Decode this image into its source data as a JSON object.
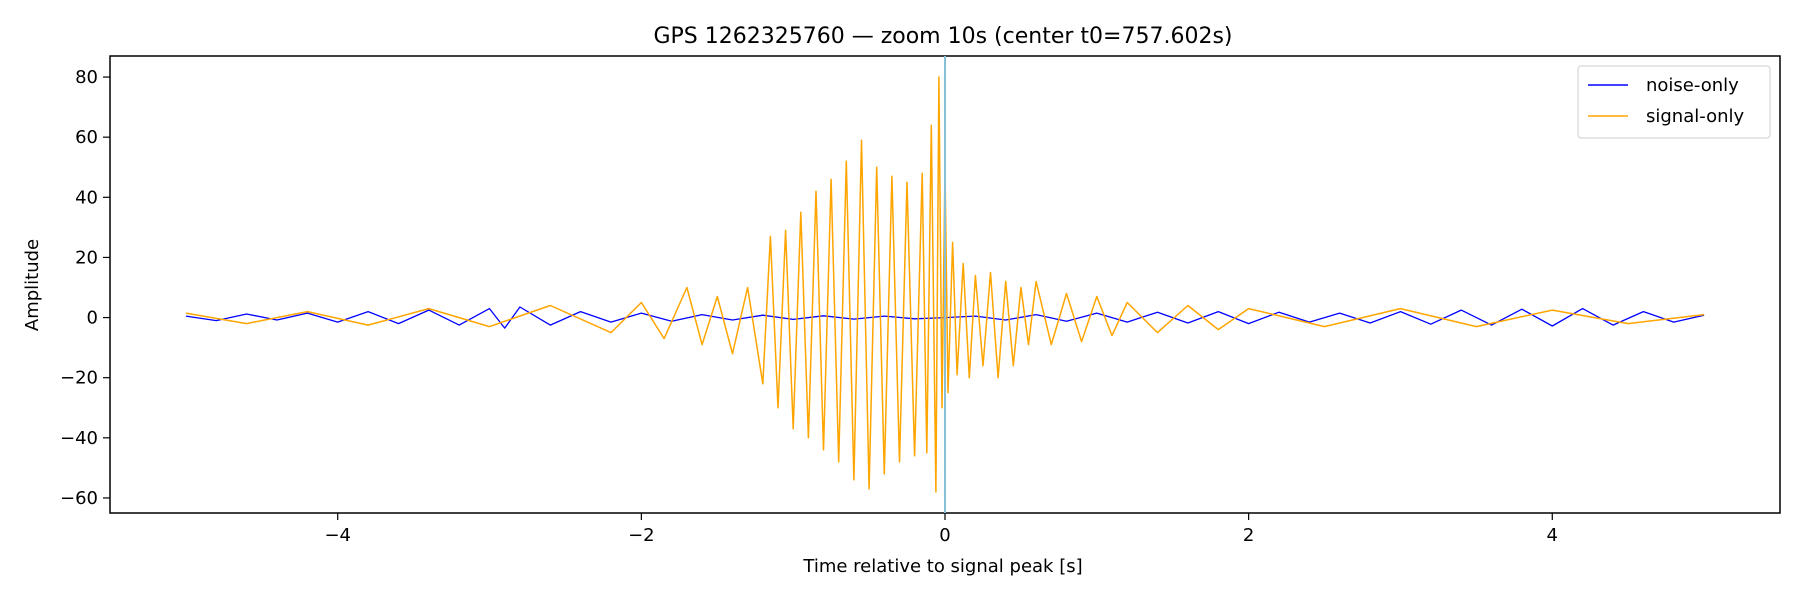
{
  "chart_data": {
    "type": "line",
    "title": "GPS 1262325760 — zoom 10s (center t0=757.602s)",
    "xlabel": "Time relative to signal peak [s]",
    "ylabel": "Amplitude",
    "xlim": [
      -5.5,
      5.5
    ],
    "ylim": [
      -65,
      87
    ],
    "xticks": [
      -4,
      -2,
      0,
      2,
      4
    ],
    "xtick_labels": [
      "−4",
      "−2",
      "0",
      "2",
      "4"
    ],
    "yticks": [
      -60,
      -40,
      -20,
      0,
      20,
      40,
      60,
      80
    ],
    "ytick_labels": [
      "−60",
      "−40",
      "−20",
      "0",
      "20",
      "40",
      "60",
      "80"
    ],
    "grid": false,
    "legend_position": "top-right",
    "vline": {
      "x": 0,
      "color": "#87bfd6"
    },
    "series": [
      {
        "name": "noise-only",
        "color": "#0000ff",
        "x": [
          -5.0,
          -4.8,
          -4.6,
          -4.4,
          -4.2,
          -4.0,
          -3.8,
          -3.6,
          -3.4,
          -3.2,
          -3.0,
          -2.9,
          -2.8,
          -2.6,
          -2.4,
          -2.2,
          -2.0,
          -1.8,
          -1.6,
          -1.4,
          -1.2,
          -1.0,
          -0.8,
          -0.6,
          -0.4,
          -0.2,
          0.0,
          0.2,
          0.4,
          0.6,
          0.8,
          1.0,
          1.2,
          1.4,
          1.6,
          1.8,
          2.0,
          2.2,
          2.4,
          2.6,
          2.8,
          3.0,
          3.2,
          3.4,
          3.6,
          3.8,
          4.0,
          4.2,
          4.4,
          4.6,
          4.8,
          5.0
        ],
        "y": [
          0.5,
          -1.0,
          1.2,
          -0.8,
          1.5,
          -1.5,
          2.0,
          -2.0,
          2.5,
          -2.5,
          3.0,
          -3.5,
          3.5,
          -2.5,
          2.0,
          -1.5,
          1.5,
          -1.2,
          1.0,
          -0.8,
          0.8,
          -0.6,
          0.6,
          -0.5,
          0.5,
          -0.4,
          0.0,
          0.5,
          -0.8,
          1.0,
          -1.2,
          1.5,
          -1.5,
          1.8,
          -1.8,
          2.0,
          -2.0,
          1.8,
          -1.5,
          1.5,
          -1.8,
          2.0,
          -2.2,
          2.5,
          -2.5,
          2.8,
          -2.8,
          3.0,
          -2.5,
          2.0,
          -1.5,
          0.8
        ]
      },
      {
        "name": "signal-only",
        "color": "#ffa500",
        "x": [
          -5.0,
          -4.6,
          -4.2,
          -3.8,
          -3.4,
          -3.0,
          -2.6,
          -2.2,
          -2.0,
          -1.85,
          -1.7,
          -1.6,
          -1.5,
          -1.4,
          -1.3,
          -1.2,
          -1.15,
          -1.1,
          -1.05,
          -1.0,
          -0.95,
          -0.9,
          -0.85,
          -0.8,
          -0.75,
          -0.7,
          -0.65,
          -0.6,
          -0.55,
          -0.5,
          -0.45,
          -0.4,
          -0.35,
          -0.3,
          -0.25,
          -0.2,
          -0.15,
          -0.12,
          -0.09,
          -0.06,
          -0.04,
          -0.02,
          0.0,
          0.02,
          0.05,
          0.08,
          0.12,
          0.16,
          0.2,
          0.25,
          0.3,
          0.35,
          0.4,
          0.45,
          0.5,
          0.55,
          0.6,
          0.7,
          0.8,
          0.9,
          1.0,
          1.1,
          1.2,
          1.4,
          1.6,
          1.8,
          2.0,
          2.5,
          3.0,
          3.5,
          4.0,
          4.5,
          5.0
        ],
        "y": [
          1.5,
          -2.0,
          2.0,
          -2.5,
          3.0,
          -3.0,
          4.0,
          -5.0,
          5.0,
          -7.0,
          10.0,
          -9.0,
          7.0,
          -12.0,
          10.0,
          -22.0,
          27.0,
          -30.0,
          29.0,
          -37.0,
          35.0,
          -40.0,
          42.0,
          -44.0,
          46.0,
          -48.0,
          52.0,
          -54.0,
          59.0,
          -57.0,
          50.0,
          -52.0,
          47.0,
          -48.0,
          45.0,
          -46.0,
          48.0,
          -45.0,
          64.0,
          -58.0,
          80.0,
          -30.0,
          50.0,
          -25.0,
          25.0,
          -19.0,
          18.0,
          -20.0,
          14.0,
          -16.0,
          15.0,
          -20.0,
          12.0,
          -16.0,
          10.0,
          -9.0,
          12.0,
          -9.0,
          8.0,
          -8.0,
          7.0,
          -6.0,
          5.0,
          -5.0,
          4.0,
          -4.0,
          3.0,
          -3.0,
          3.0,
          -3.0,
          2.5,
          -2.0,
          1.0
        ]
      }
    ]
  }
}
